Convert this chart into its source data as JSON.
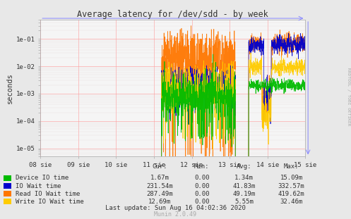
{
  "title": "Average latency for /dev/sdd - by week",
  "ylabel": "seconds",
  "right_label": "RRDTOOL / TOBI OETIKER",
  "bg_color": "#e8e8e8",
  "plot_bg_color": "#f5f5f5",
  "grid_major_color": "#ff9999",
  "grid_minor_color": "#ddcccc",
  "x_labels": [
    "08 sie",
    "09 sie",
    "10 sie",
    "11 sie",
    "12 sie",
    "13 sie",
    "14 sie",
    "15 sie"
  ],
  "legend_items": [
    {
      "label": "Device IO time",
      "color": "#00bb00"
    },
    {
      "label": "IO Wait time",
      "color": "#0000cc"
    },
    {
      "label": "Read IO Wait time",
      "color": "#ff7700"
    },
    {
      "label": "Write IO Wait time",
      "color": "#ffcc00"
    }
  ],
  "table_headers": [
    "Cur:",
    "Min:",
    "Avg:",
    "Max:"
  ],
  "table_rows": [
    [
      "1.67m",
      "0.00",
      "1.34m",
      "15.09m"
    ],
    [
      "231.54m",
      "0.00",
      "41.83m",
      "332.57m"
    ],
    [
      "287.49m",
      "0.00",
      "49.19m",
      "419.62m"
    ],
    [
      "12.69m",
      "0.00",
      "5.55m",
      "32.46m"
    ]
  ],
  "last_update": "Last update: Sun Aug 16 04:02:36 2020",
  "muninver": "Munin 2.0.49"
}
